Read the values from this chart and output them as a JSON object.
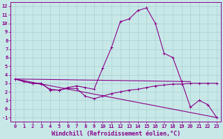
{
  "title": "",
  "xlabel": "Windchill (Refroidissement éolien,°C)",
  "ylabel": "",
  "xlim": [
    -0.5,
    23.5
  ],
  "ylim": [
    -1.5,
    12.5
  ],
  "xticks": [
    0,
    1,
    2,
    3,
    4,
    5,
    6,
    7,
    8,
    9,
    10,
    11,
    12,
    13,
    14,
    15,
    16,
    17,
    18,
    19,
    20,
    21,
    22,
    23
  ],
  "yticks": [
    -1,
    0,
    1,
    2,
    3,
    4,
    5,
    6,
    7,
    8,
    9,
    10,
    11,
    12
  ],
  "bg_color": "#c8e8e8",
  "grid_color": "#a8d0d0",
  "line_color": "#880088",
  "line1_x": [
    0,
    1,
    2,
    3,
    4,
    5,
    6,
    7,
    8,
    9,
    10,
    11,
    12,
    13,
    14,
    15,
    16,
    17,
    18,
    19,
    20,
    21,
    22,
    23
  ],
  "line1_y": [
    3.5,
    3.2,
    3.0,
    2.9,
    2.3,
    2.2,
    2.5,
    2.7,
    2.5,
    2.3,
    4.8,
    7.2,
    10.2,
    10.5,
    11.5,
    11.8,
    10.0,
    6.5,
    6.0,
    3.2,
    0.2,
    1.0,
    0.5,
    -1.0
  ],
  "line2_x": [
    0,
    1,
    2,
    3,
    4,
    5,
    6,
    7,
    8,
    9,
    10,
    11,
    12,
    13,
    14,
    15,
    16,
    17,
    18,
    19,
    20,
    21,
    22,
    23
  ],
  "line2_y": [
    3.5,
    3.2,
    3.0,
    3.0,
    2.2,
    2.2,
    2.4,
    2.4,
    1.5,
    1.2,
    1.5,
    1.8,
    2.0,
    2.2,
    2.3,
    2.5,
    2.7,
    2.8,
    2.9,
    2.9,
    3.0,
    3.0,
    3.0,
    3.0
  ],
  "line3_x": [
    0,
    20
  ],
  "line3_y": [
    3.5,
    3.2
  ],
  "line4_x": [
    0,
    23
  ],
  "line4_y": [
    3.5,
    -1.0
  ],
  "tick_fontsize": 5.0,
  "xlabel_fontsize": 6.0
}
